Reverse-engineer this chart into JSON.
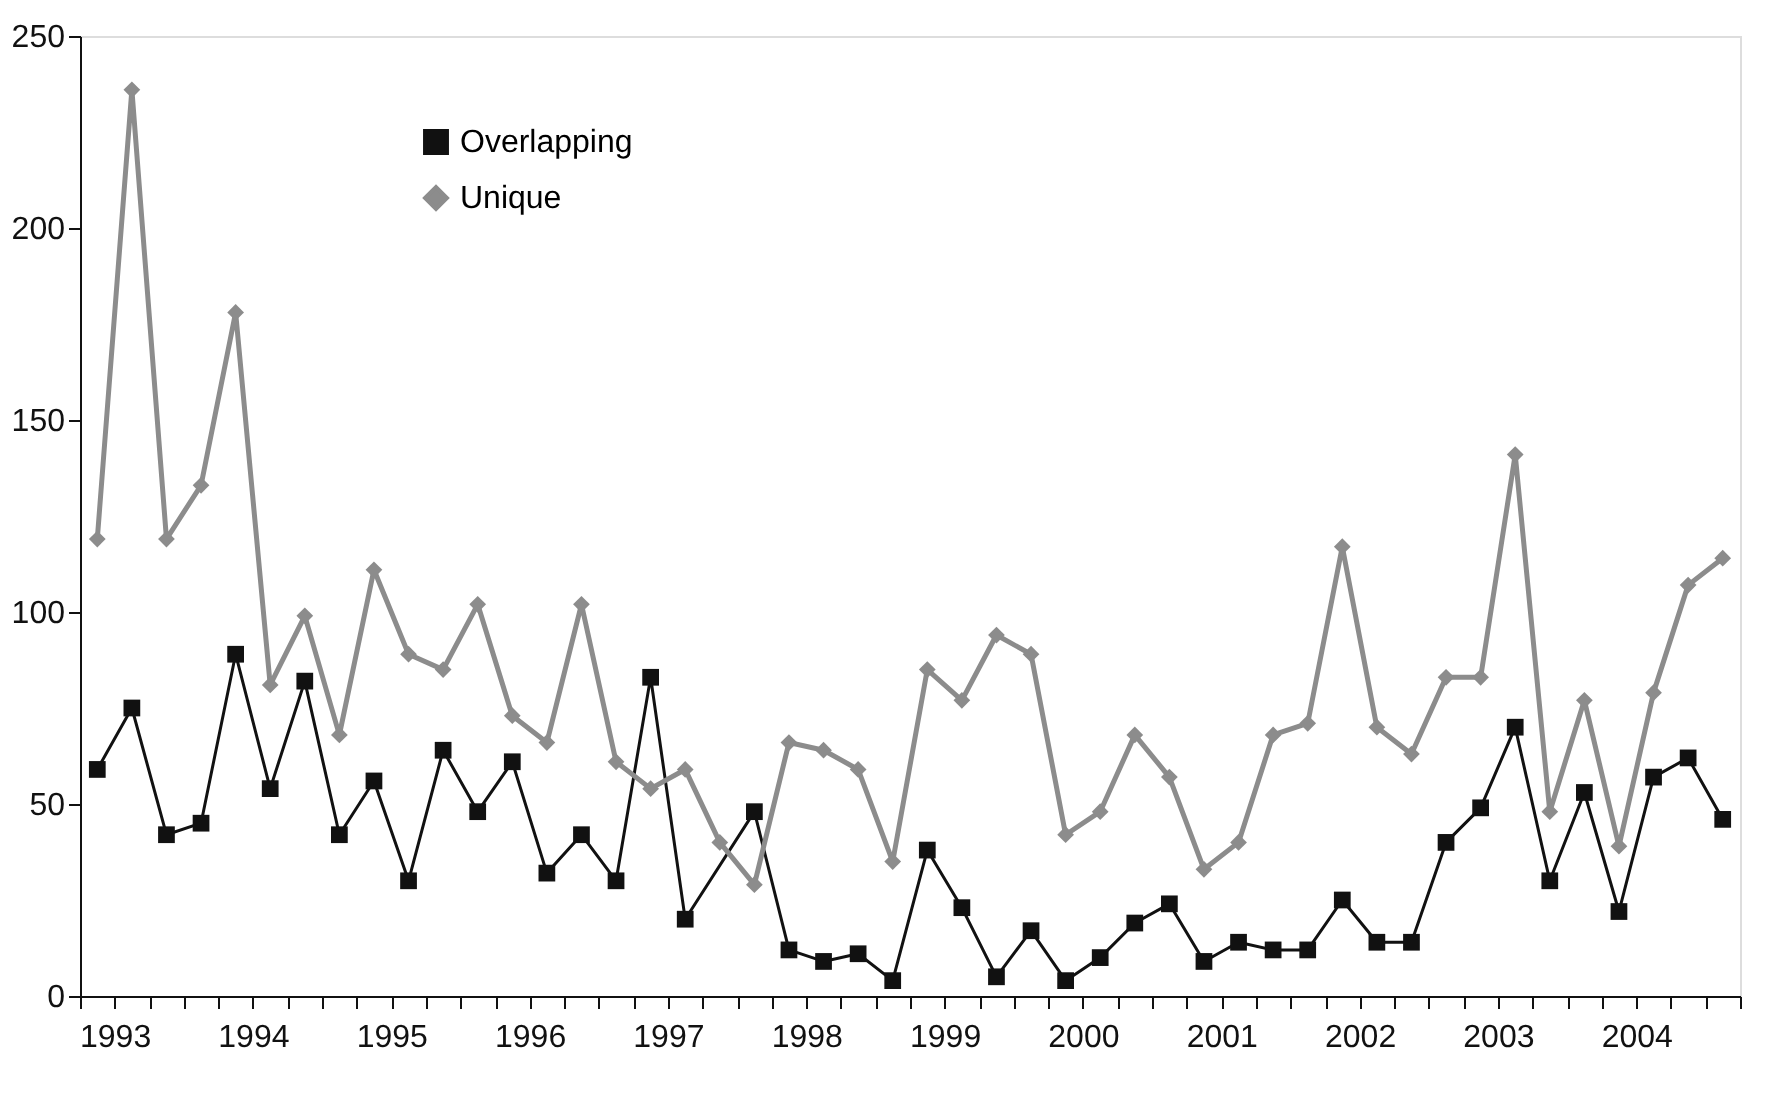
{
  "chart_data": {
    "type": "line",
    "x": [
      1992.875,
      1993.125,
      1993.375,
      1993.625,
      1993.875,
      1994.125,
      1994.375,
      1994.625,
      1994.875,
      1995.125,
      1995.375,
      1995.625,
      1995.875,
      1996.125,
      1996.375,
      1996.625,
      1996.875,
      1997.125,
      1997.375,
      1997.625,
      1997.875,
      1998.125,
      1998.375,
      1998.625,
      1998.875,
      1999.125,
      1999.375,
      1999.625,
      1999.875,
      2000.125,
      2000.375,
      2000.625,
      2000.875,
      2001.125,
      2001.375,
      2001.625,
      2001.875,
      2002.125,
      2002.375,
      2002.625,
      2002.875,
      2003.125,
      2003.375,
      2003.625,
      2003.875,
      2004.125,
      2004.375,
      2004.625
    ],
    "series": [
      {
        "name": "Overlapping",
        "color": "#111111",
        "marker": "square",
        "values": [
          59,
          75,
          42,
          45,
          89,
          54,
          82,
          42,
          56,
          30,
          64,
          48,
          61,
          32,
          42,
          30,
          83,
          20,
          null,
          48,
          12,
          9,
          11,
          4,
          38,
          23,
          5,
          17,
          4,
          10,
          19,
          24,
          9,
          14,
          12,
          12,
          25,
          14,
          14,
          40,
          49,
          70,
          30,
          53,
          22,
          57,
          62,
          46
        ]
      },
      {
        "name": "Unique",
        "color": "#8c8c8c",
        "marker": "diamond",
        "values": [
          119,
          236,
          119,
          133,
          178,
          81,
          99,
          68,
          111,
          89,
          85,
          102,
          73,
          66,
          102,
          61,
          54,
          59,
          40,
          29,
          66,
          64,
          59,
          35,
          85,
          77,
          94,
          89,
          42,
          48,
          68,
          57,
          33,
          40,
          68,
          71,
          117,
          70,
          63,
          83,
          83,
          141,
          48,
          77,
          39,
          79,
          107,
          114
        ]
      }
    ],
    "xlim": [
      1992.75,
      2004.75
    ],
    "xticks": [
      {
        "value": 1992.75,
        "label": null
      },
      1993,
      {
        "value": 1993.25,
        "label": null
      },
      {
        "value": 1993.5,
        "label": null
      },
      {
        "value": 1993.75,
        "label": null
      },
      1994,
      {
        "value": 1994.25,
        "label": null
      },
      {
        "value": 1994.5,
        "label": null
      },
      {
        "value": 1994.75,
        "label": null
      },
      1995,
      {
        "value": 1995.25,
        "label": null
      },
      {
        "value": 1995.5,
        "label": null
      },
      {
        "value": 1995.75,
        "label": null
      },
      1996,
      {
        "value": 1996.25,
        "label": null
      },
      {
        "value": 1996.5,
        "label": null
      },
      {
        "value": 1996.75,
        "label": null
      },
      1997,
      {
        "value": 1997.25,
        "label": null
      },
      {
        "value": 1997.5,
        "label": null
      },
      {
        "value": 1997.75,
        "label": null
      },
      1998,
      {
        "value": 1998.25,
        "label": null
      },
      {
        "value": 1998.5,
        "label": null
      },
      {
        "value": 1998.75,
        "label": null
      },
      1999,
      {
        "value": 1999.25,
        "label": null
      },
      {
        "value": 1999.5,
        "label": null
      },
      {
        "value": 1999.75,
        "label": null
      },
      2000,
      {
        "value": 2000.25,
        "label": null
      },
      {
        "value": 2000.5,
        "label": null
      },
      {
        "value": 2000.75,
        "label": null
      },
      2001,
      {
        "value": 2001.25,
        "label": null
      },
      {
        "value": 2001.5,
        "label": null
      },
      {
        "value": 2001.75,
        "label": null
      },
      2002,
      {
        "value": 2002.25,
        "label": null
      },
      {
        "value": 2002.5,
        "label": null
      },
      {
        "value": 2002.75,
        "label": null
      },
      2003,
      {
        "value": 2003.25,
        "label": null
      },
      {
        "value": 2003.5,
        "label": null
      },
      {
        "value": 2003.75,
        "label": null
      },
      2004,
      {
        "value": 2004.25,
        "label": null
      },
      {
        "value": 2004.5,
        "label": null
      },
      {
        "value": 2004.75,
        "label": null
      }
    ],
    "ylim": [
      0,
      250
    ],
    "yticks": [
      0,
      50,
      100,
      150,
      200,
      250
    ],
    "grid": false,
    "legend": "top left",
    "line_style": "solid"
  }
}
